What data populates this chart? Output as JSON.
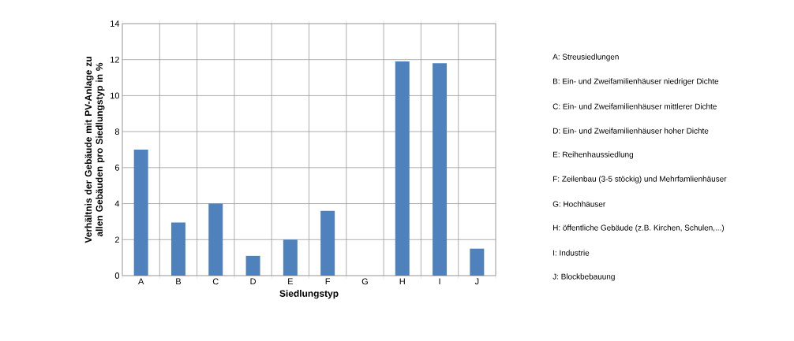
{
  "chart_data": {
    "type": "bar",
    "xlabel": "Siedlungstyp",
    "ylabel": "Verhältnis der Gebäude mit PV-Anlage zu allen Gebäuden pro Siedlungstyp in %",
    "categories": [
      "A",
      "B",
      "C",
      "D",
      "E",
      "F",
      "G",
      "H",
      "I",
      "J"
    ],
    "values": [
      7.0,
      2.95,
      4.0,
      1.1,
      2.0,
      3.6,
      0,
      11.9,
      11.8,
      1.5
    ],
    "color": "#4f81bd",
    "ylim": [
      0,
      14
    ],
    "yticks": [
      0,
      2,
      4,
      6,
      8,
      10,
      12,
      14
    ],
    "grid": true,
    "annotations": [
      "A: Streusiedlungen",
      "B: Ein- und Zweifamilienhäuser niedriger Dichte",
      "C: Ein- und Zweifamilienhäuser mittlerer Dichte",
      "D: Ein- und Zweifamilienhäuser hoher Dichte",
      "E: Reihenhaussiedlung",
      "F: Zeilenbau (3-5 stöckig) und Mehrfamlienhäuser",
      "G: Hochhäuser",
      "H: öffentliche Gebäude (z.B. Kirchen, Schulen,...)",
      "I: Industrie",
      "J: Blockbebauung"
    ]
  }
}
